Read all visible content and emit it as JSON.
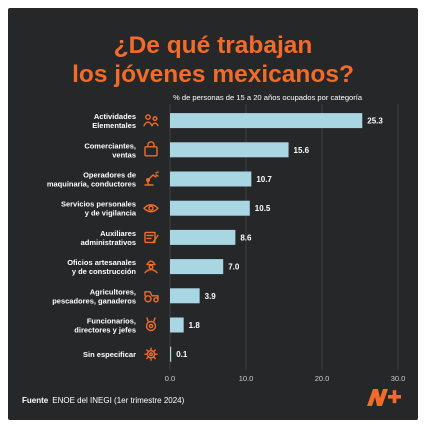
{
  "title_lines": [
    "¿De qué trabajan",
    "los jóvenes mexicanos?"
  ],
  "colors": {
    "background": "#262729",
    "accent": "#f26b2a",
    "bar": "#a9d6e3",
    "text": "#ffffff",
    "axis": "#cfcfcf"
  },
  "chart_data": {
    "type": "bar",
    "orientation": "horizontal",
    "title": "¿De qué trabajan los jóvenes mexicanos?",
    "subtitle": "% de personas de 15 a 20 años ocupados por categoría",
    "categories": [
      [
        "Actividades",
        "Elementales"
      ],
      [
        "Comerciantes,",
        "ventas"
      ],
      [
        "Operadores de",
        "maquinaria, conductores"
      ],
      [
        "Servicios personales",
        "y de vigilancia"
      ],
      [
        "Auxiliares",
        "administrativos"
      ],
      [
        "Oficios artesanales",
        "y de construcción"
      ],
      [
        "Agricultores,",
        "pescadores, ganaderos"
      ],
      [
        "Funcionarios,",
        "directores y jefes"
      ],
      [
        "Sin especificar"
      ]
    ],
    "values": [
      25.3,
      15.6,
      10.7,
      10.5,
      8.6,
      7.0,
      3.9,
      1.8,
      0.1
    ],
    "value_labels": [
      "25.3",
      "15.6",
      "10.7",
      "10.5",
      "8.6",
      "7.0",
      "3.9",
      "1.8",
      "0.1"
    ],
    "icons": [
      "people-icon",
      "shopping-bag-icon",
      "robot-arm-icon",
      "eye-icon",
      "document-pen-icon",
      "worker-icon",
      "tractor-icon",
      "medal-icon",
      "gear-icon"
    ],
    "xlim": [
      0,
      30
    ],
    "xticks": [
      0,
      10,
      20,
      30
    ],
    "xtick_labels": [
      "0.0",
      "10.0",
      "20.0",
      "30.0"
    ],
    "grid": true
  },
  "source": {
    "label": "Fuente",
    "text": "ENOE del INEGI (1er trimestre 2024)"
  },
  "logo": "N+"
}
